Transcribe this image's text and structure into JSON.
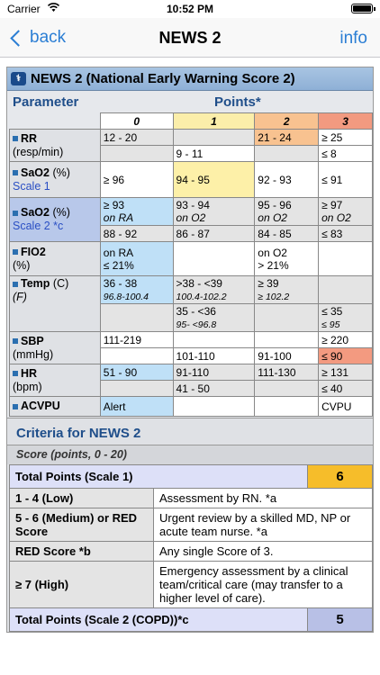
{
  "status": {
    "carrier": "Carrier",
    "time": "10:52 PM"
  },
  "nav": {
    "back": "back",
    "title": "NEWS 2",
    "info": "info"
  },
  "titlebar": "NEWS 2 (National Early Warning Score 2)",
  "header": {
    "parameter": "Parameter",
    "points": "Points*",
    "cols": [
      "0",
      "1",
      "2",
      "3"
    ]
  },
  "rr": {
    "name": "RR",
    "unit": "(resp/min)",
    "r1": [
      "12 - 20",
      "",
      "21 - 24",
      "≥ 25"
    ],
    "r2": [
      "",
      "9 - 11",
      "",
      "≤ 8"
    ]
  },
  "sao2s1": {
    "name": "SaO2",
    "unit": "(%)",
    "scale": "Scale 1",
    "r1": [
      "≥ 96",
      "94 - 95",
      "92 - 93",
      "≤ 91"
    ]
  },
  "sao2s2": {
    "name": "SaO2",
    "unit": "(%)",
    "scale": "Scale 2 *c",
    "r1a": [
      "≥ 93",
      "93 - 94",
      "95 - 96",
      "≥ 97"
    ],
    "r1b": [
      "on RA",
      "on O2",
      "on O2",
      "on O2"
    ],
    "r2": [
      "88 - 92",
      "86 - 87",
      "84 - 85",
      "≤ 83"
    ]
  },
  "fio2": {
    "name": "FIO2",
    "unit": "(%)",
    "c0a": "on RA",
    "c0b": "≤ 21%",
    "c2a": "on O2",
    "c2b": "> 21%"
  },
  "temp": {
    "name": "Temp",
    "unit": "(C)",
    "unit2": "(F)",
    "r1": {
      "c0a": "36 - 38",
      "c0b": "96.8-100.4",
      "c1a": ">38 - <39",
      "c1b": "100.4-102.2",
      "c2a": "≥ 39",
      "c2b": "≥ 102.2"
    },
    "r2": {
      "c1a": "35 - <36",
      "c1b": "95- <96.8",
      "c3a": "≤ 35",
      "c3b": "≤ 95"
    }
  },
  "sbp": {
    "name": "SBP",
    "unit": "(mmHg)",
    "r1": [
      "111-219",
      "",
      "",
      "≥ 220"
    ],
    "r2": [
      "",
      "101-110",
      "91-100",
      "≤ 90"
    ]
  },
  "hr": {
    "name": "HR",
    "unit": "(bpm)",
    "r1": [
      "51 - 90",
      "91-110",
      "111-130",
      "≥ 131"
    ],
    "r2": [
      "",
      "41 - 50",
      "",
      "≤ 40"
    ]
  },
  "acvpu": {
    "name": "ACVPU",
    "r1": [
      "Alert",
      "",
      "",
      "CVPU"
    ]
  },
  "criteria": {
    "title": "Criteria for NEWS 2",
    "score": "Score (points, 0 - 20)",
    "total1": "Total Points (Scale 1)",
    "total1_val": "6",
    "rows": [
      {
        "label": "1 - 4 (Low)",
        "desc": "Assessment by RN. *a"
      },
      {
        "label": "5 - 6 (Medium) or RED Score",
        "desc": "Urgent review by a skilled MD, NP or acute team nurse. *a"
      },
      {
        "label": "RED Score *b",
        "desc": "Any single Score of 3."
      },
      {
        "label": "≥ 7 (High)",
        "desc": "Emergency assessment by a clinical team/critical care (may transfer to a higher level of care)."
      }
    ],
    "total2": "Total Points (Scale 2 (COPD))*c",
    "total2_val": "5"
  }
}
